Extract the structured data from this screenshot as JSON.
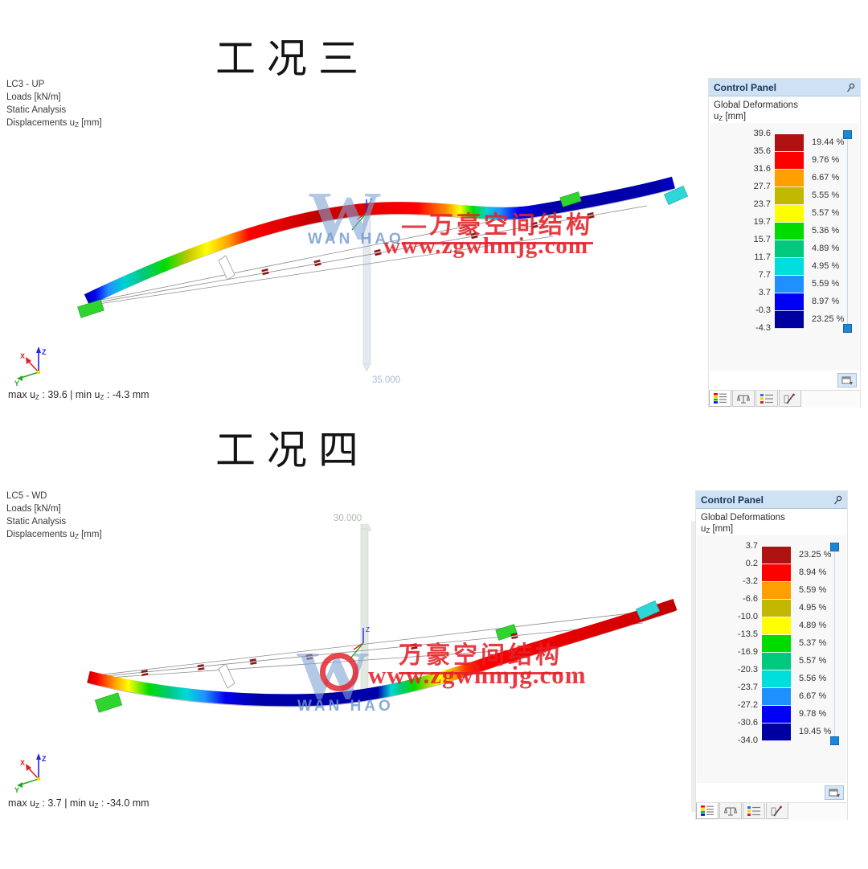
{
  "palette": {
    "scale_colors": [
      "#B01212",
      "#FF0000",
      "#FFA000",
      "#C3B800",
      "#FFFF00",
      "#00DC00",
      "#00C87D",
      "#00DDDD",
      "#1E90FF",
      "#0000F4",
      "#0000A0"
    ],
    "handle_blue": "#1C86D9",
    "header_bg": "#CFE2F4",
    "header_text": "#17365D",
    "watermark_blue": "#80A4D4",
    "watermark_red": "#E42028"
  },
  "watermark": {
    "w": "W",
    "brand": "WAN HAO",
    "dash": "—",
    "cn": "万豪空间结构",
    "url": "www.zgwhmjg.com"
  },
  "case3": {
    "title": "工况三",
    "info_lines": [
      "LC3 - UP",
      "Loads [kN/m]",
      "Static Analysis"
    ],
    "info_disp": {
      "pre": "Displacements u",
      "sub": "Z",
      "post": " [mm]"
    },
    "pylon_dim": "35.000",
    "axes": {
      "x": "X",
      "y": "Y",
      "z": "Z"
    },
    "status": {
      "p1": "max u",
      "s1": "Z",
      "p2": " : 39.6 | min u",
      "s2": "Z",
      "p3": " : -4.3 mm"
    },
    "panel": {
      "title": "Control Panel",
      "group": "Global Deformations",
      "unit": {
        "pre": "u",
        "sub": "Z",
        "post": " [mm]"
      },
      "values": [
        "39.6",
        "35.6",
        "31.6",
        "27.7",
        "23.7",
        "19.7",
        "15.7",
        "11.7",
        "7.7",
        "3.7",
        "-0.3",
        "-4.3"
      ],
      "percents": [
        "19.44 %",
        "9.76 %",
        "6.67 %",
        "5.55 %",
        "5.57 %",
        "5.36 %",
        "4.89 %",
        "4.95 %",
        "5.59 %",
        "8.97 %",
        "23.25 %"
      ]
    }
  },
  "case4": {
    "title": "工况四",
    "info_lines": [
      "LC5 - WD",
      "Loads [kN/m]",
      "Static Analysis"
    ],
    "info_disp": {
      "pre": "Displacements u",
      "sub": "Z",
      "post": " [mm]"
    },
    "pylon_dim": "30.000",
    "axes": {
      "x": "X",
      "y": "Y",
      "z": "Z"
    },
    "status": {
      "p1": "max u",
      "s1": "Z",
      "p2": " : 3.7 | min u",
      "s2": "Z",
      "p3": " : -34.0 mm"
    },
    "panel": {
      "title": "Control Panel",
      "group": "Global Deformations",
      "unit": {
        "pre": "u",
        "sub": "Z",
        "post": " [mm]"
      },
      "values": [
        "3.7",
        "0.2",
        "-3.2",
        "-6.6",
        "-10.0",
        "-13.5",
        "-16.9",
        "-20.3",
        "-23.7",
        "-27.2",
        "-30.6",
        "-34.0"
      ],
      "percents": [
        "23.25 %",
        "8.94 %",
        "5.59 %",
        "4.95 %",
        "4.89 %",
        "5.37 %",
        "5.57 %",
        "5.56 %",
        "6.67 %",
        "9.78 %",
        "19.45 %"
      ]
    }
  }
}
